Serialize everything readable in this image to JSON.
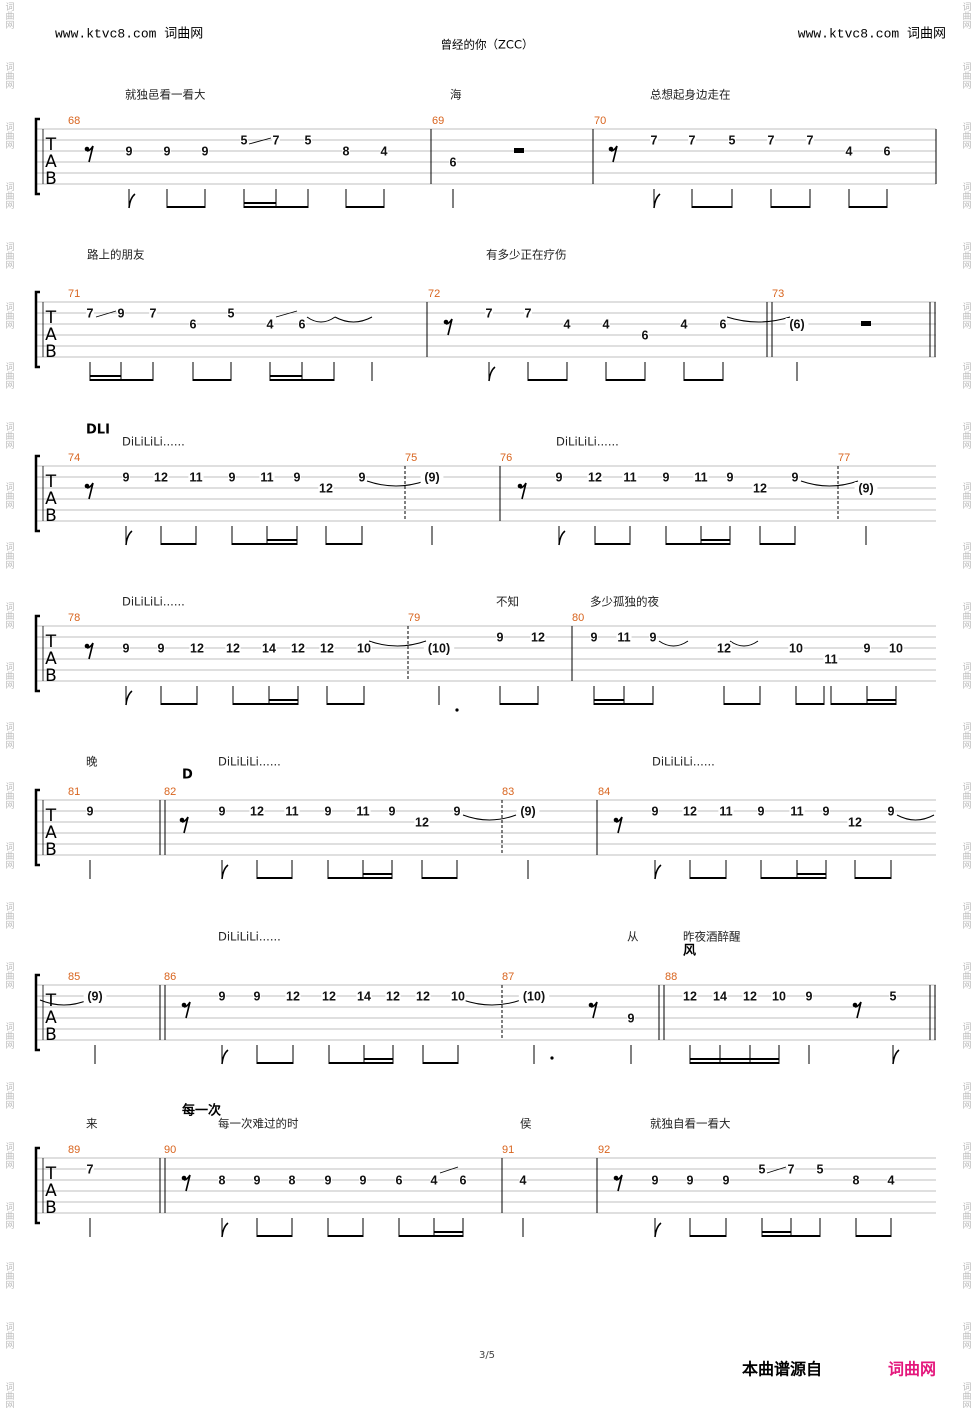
{
  "header": {
    "site_left": "www.ktvc8.com 词曲网",
    "title": "曾经的你（ZCC）",
    "site_right": "www.ktvc8.com 词曲网"
  },
  "watermark": "词曲网",
  "systems": [
    {
      "labels": [],
      "lyrics": [
        "就独邑看一看大",
        "海",
        "总想起身边走在"
      ],
      "measures": [
        68,
        69,
        70
      ],
      "notes": [
        9,
        9,
        9,
        5,
        7,
        5,
        8,
        4,
        6,
        7,
        7,
        5,
        7,
        7,
        4,
        6
      ]
    },
    {
      "labels": [],
      "lyrics": [
        "路上的朋友",
        "有多少正在疗伤"
      ],
      "measures": [
        71,
        72,
        73
      ],
      "notes": [
        7,
        9,
        7,
        6,
        5,
        4,
        6,
        7,
        7,
        4,
        4,
        6,
        4,
        6,
        "(6)"
      ]
    },
    {
      "labels": [
        "DLI"
      ],
      "lyrics": [
        "DiLiLiLi......",
        "DiLiLiLi......"
      ],
      "measures": [
        74,
        75,
        76,
        77
      ],
      "notes": [
        9,
        12,
        11,
        9,
        11,
        9,
        12,
        9,
        "(9)",
        9,
        12,
        11,
        9,
        11,
        9,
        12,
        9,
        "(9)"
      ]
    },
    {
      "labels": [],
      "lyrics": [
        "DiLiLiLi......",
        "不知",
        "多少孤独的夜"
      ],
      "measures": [
        78,
        79,
        80
      ],
      "notes": [
        9,
        9,
        12,
        12,
        14,
        12,
        12,
        10,
        "(10)",
        9,
        12,
        9,
        11,
        9,
        12,
        10,
        11,
        9,
        10
      ]
    },
    {
      "labels": [
        "D"
      ],
      "lyrics": [
        "晚",
        "DiLiLiLi......",
        "DiLiLiLi......"
      ],
      "measures": [
        81,
        82,
        83,
        84
      ],
      "notes": [
        9,
        9,
        12,
        11,
        9,
        11,
        9,
        12,
        9,
        "(9)",
        9,
        12,
        11,
        9,
        11,
        9,
        12,
        9
      ]
    },
    {
      "labels": [
        "风"
      ],
      "lyrics": [
        "DiLiLiLi......",
        "从",
        "昨夜酒醉醒"
      ],
      "measures": [
        85,
        86,
        87,
        88
      ],
      "notes": [
        "(9)",
        9,
        9,
        12,
        12,
        14,
        12,
        12,
        10,
        "(10)",
        9,
        12,
        14,
        12,
        10,
        9,
        5
      ]
    },
    {
      "labels": [
        "每一次"
      ],
      "lyrics": [
        "来",
        "每一次难过的时",
        "侯",
        "就独自看一看大"
      ],
      "measures": [
        89,
        90,
        91,
        92
      ],
      "notes": [
        7,
        8,
        9,
        8,
        9,
        9,
        6,
        4,
        6,
        4,
        9,
        9,
        9,
        5,
        7,
        5,
        8,
        4
      ]
    }
  ],
  "footer": {
    "page": "3/5",
    "source": "本曲谱源自",
    "site": "词曲网"
  }
}
